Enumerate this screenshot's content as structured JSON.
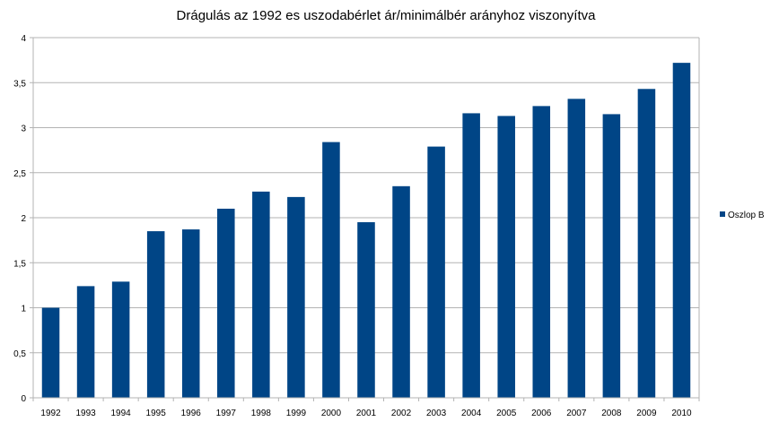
{
  "chart_data": {
    "type": "bar",
    "title": "Drágulás az 1992 es uszodabérlet ár/minimálbér arányhoz viszonyítva",
    "xlabel": "",
    "ylabel": "",
    "categories": [
      "1992",
      "1993",
      "1994",
      "1995",
      "1996",
      "1997",
      "1998",
      "1999",
      "2000",
      "2001",
      "2002",
      "2003",
      "2004",
      "2005",
      "2006",
      "2007",
      "2008",
      "2009",
      "2010"
    ],
    "series": [
      {
        "name": "Oszlop B",
        "values": [
          1.0,
          1.24,
          1.29,
          1.85,
          1.87,
          2.1,
          2.29,
          2.23,
          2.84,
          1.95,
          2.35,
          2.79,
          3.16,
          3.13,
          3.24,
          3.32,
          3.15,
          3.43,
          3.72
        ]
      }
    ],
    "ylim": [
      0,
      4
    ],
    "yticks": [
      "0",
      "0,5",
      "1",
      "1,5",
      "2",
      "2,5",
      "3",
      "3,5",
      "4"
    ],
    "grid": true,
    "legend_position": "right",
    "colors": {
      "bar": "#004586",
      "grid": "#b3b3b3",
      "axis": "#b3b3b3"
    }
  }
}
